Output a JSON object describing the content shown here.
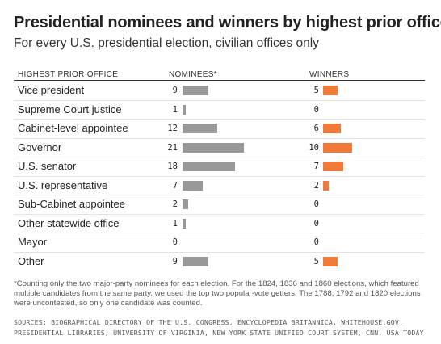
{
  "title": "Presidential nominees and winners by highest prior office",
  "subtitle": "For every U.S. presidential election, civilian offices only",
  "headers": {
    "office": "HIGHEST PRIOR OFFICE",
    "nominees": "NOMINEES*",
    "winners": "WINNERS"
  },
  "colors": {
    "nominees_bar": "#999999",
    "winners_bar": "#f07a3a"
  },
  "chart_data": {
    "type": "table",
    "columns": [
      "HIGHEST PRIOR OFFICE",
      "NOMINEES*",
      "WINNERS"
    ],
    "categories": [
      "Vice president",
      "Supreme Court justice",
      "Cabinet-level appointee",
      "Governor",
      "U.S. senator",
      "U.S. representative",
      "Sub-Cabinet appointee",
      "Other statewide office",
      "Mayor",
      "Other"
    ],
    "series": [
      {
        "name": "NOMINEES*",
        "values": [
          9,
          1,
          12,
          21,
          18,
          7,
          2,
          1,
          0,
          9
        ]
      },
      {
        "name": "WINNERS",
        "values": [
          5,
          0,
          6,
          10,
          7,
          2,
          0,
          0,
          0,
          5
        ]
      }
    ]
  },
  "footnote": "*Counting only the two major-party nominees for each election. For the 1824, 1836 and 1860 elections, which featured multiple candidates from the same party, we used the top two popular-vote getters. The 1788, 1792 and 1820 elections were uncontested, so only one candidate was counted.",
  "sources": "SOURCES: BIOGRAPHICAL DIRECTORY OF THE U.S. CONGRESS, ENCYCLOPEDIA BRITANNICA, WHITEHOUSE.GOV, PRESIDENTIAL LIBRARIES, UNIVERSITY OF VIRGINIA, NEW YORK STATE UNIFIED COURT SYSTEM, CNN, USA TODAY"
}
